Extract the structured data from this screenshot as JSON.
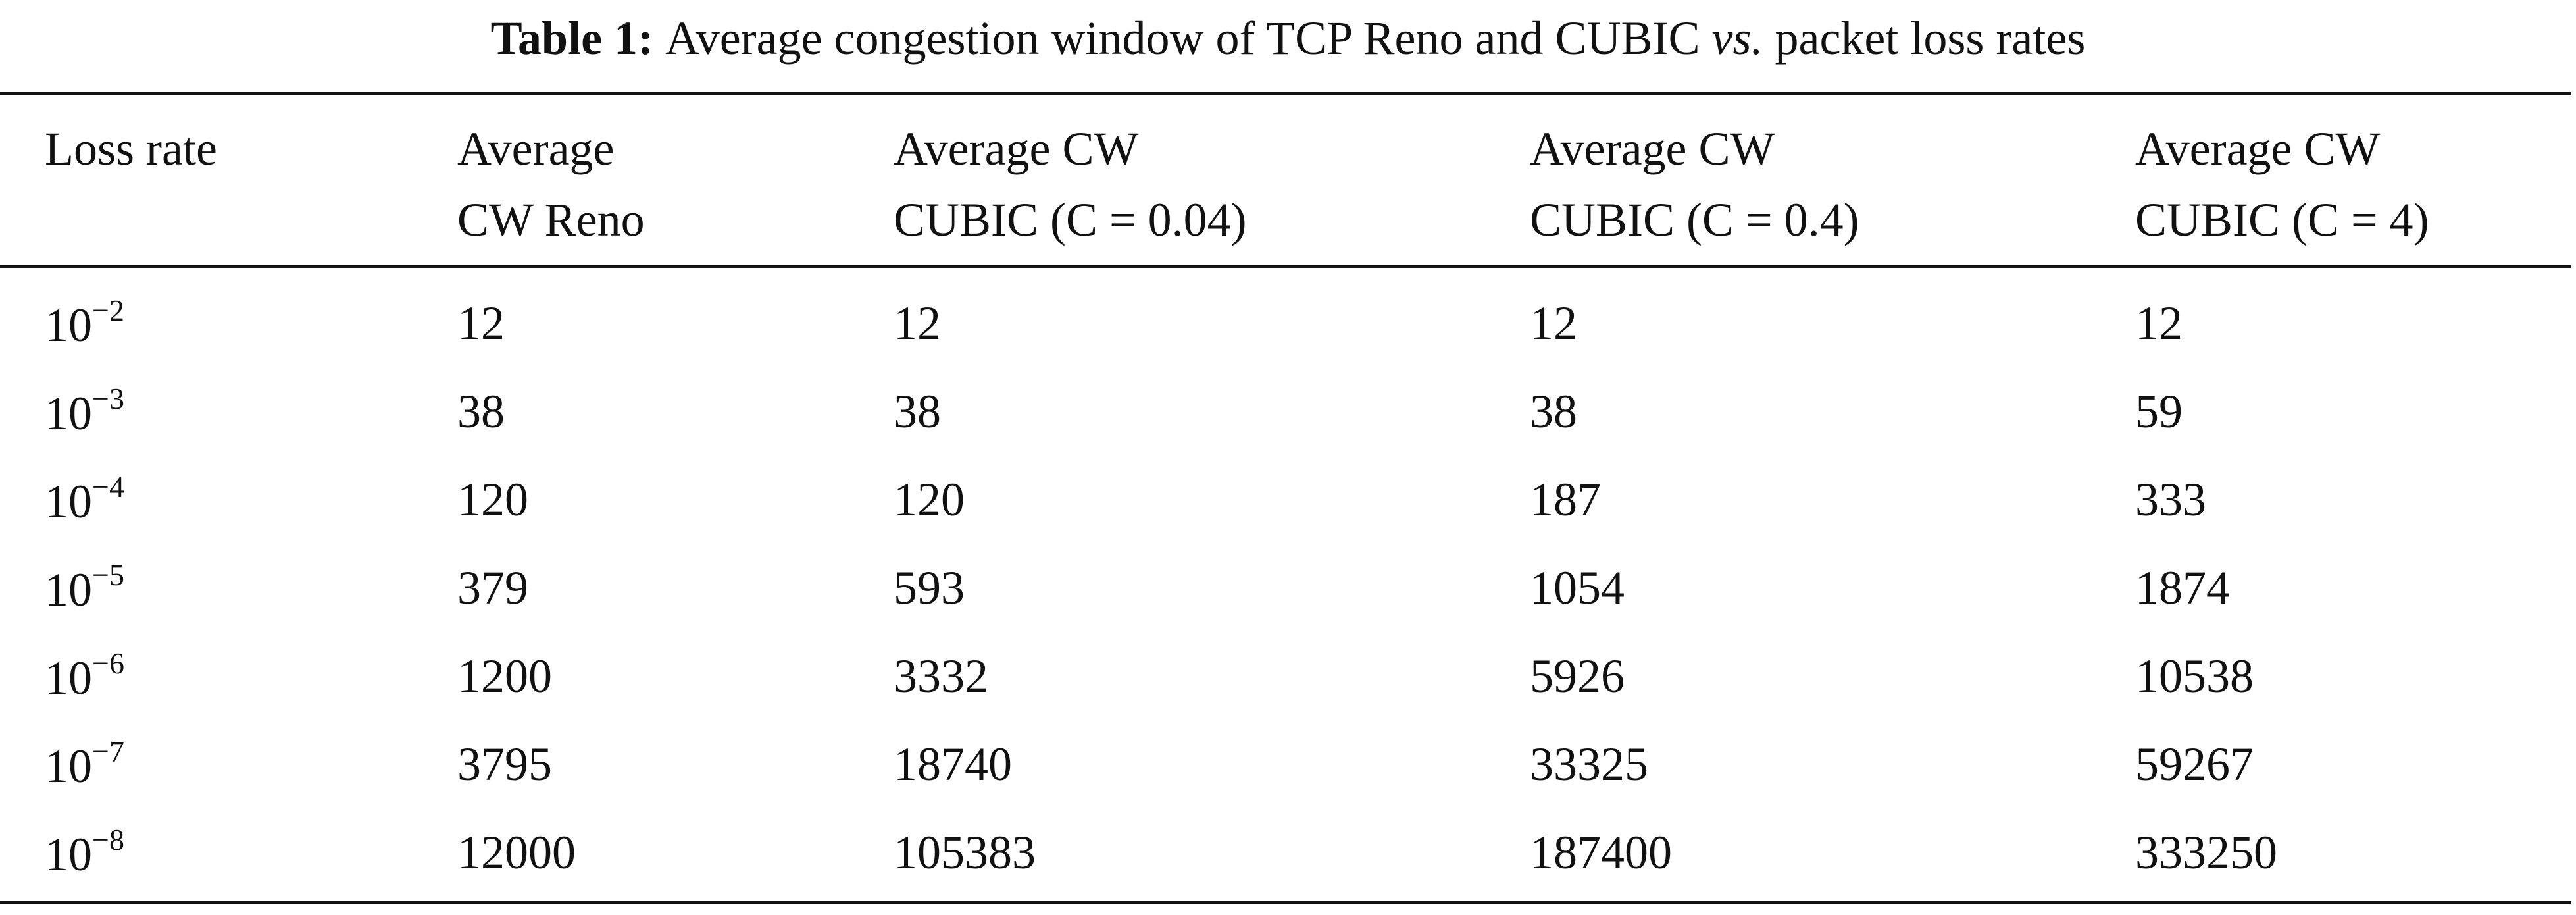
{
  "caption": {
    "label": "Table 1:",
    "text": "Average congestion window of TCP Reno and CUBIC",
    "italic": "vs.",
    "text_end": "packet loss rates"
  },
  "table": {
    "header": [
      [
        "Loss rate"
      ],
      [
        "Average",
        "CW Reno"
      ],
      [
        "Average CW",
        "CUBIC (C = 0.04)"
      ],
      [
        "Average CW",
        "CUBIC (C = 0.4)"
      ],
      [
        "Average CW",
        "CUBIC (C = 4)"
      ]
    ],
    "rows": [
      {
        "loss_rate": {
          "base": "10",
          "exponent": "−2"
        },
        "values": [
          12,
          12,
          12,
          12
        ]
      },
      {
        "loss_rate": {
          "base": "10",
          "exponent": "−3"
        },
        "values": [
          38,
          38,
          38,
          59
        ]
      },
      {
        "loss_rate": {
          "base": "10",
          "exponent": "−4"
        },
        "values": [
          120,
          120,
          187,
          333
        ]
      },
      {
        "loss_rate": {
          "base": "10",
          "exponent": "−5"
        },
        "values": [
          379,
          593,
          1054,
          1874
        ]
      },
      {
        "loss_rate": {
          "base": "10",
          "exponent": "−6"
        },
        "values": [
          1200,
          3332,
          5926,
          10538
        ]
      },
      {
        "loss_rate": {
          "base": "10",
          "exponent": "−7"
        },
        "values": [
          3795,
          18740,
          33325,
          59267
        ]
      },
      {
        "loss_rate": {
          "base": "10",
          "exponent": "−8"
        },
        "values": [
          12000,
          105383,
          187400,
          333250
        ]
      }
    ]
  }
}
